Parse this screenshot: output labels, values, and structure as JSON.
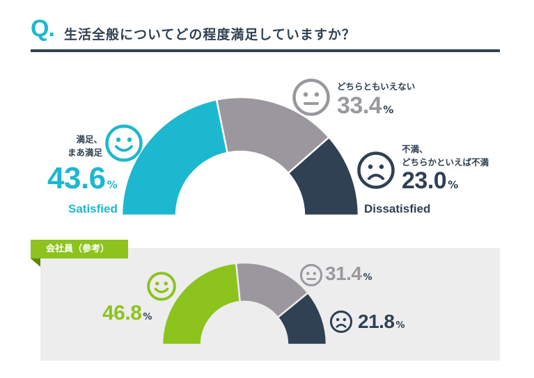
{
  "header": {
    "q_mark": "Q.",
    "question": "生活全般についてどの程度満足していますか？"
  },
  "colors": {
    "satisfied": "#1cb8cf",
    "neutral": "#9b979e",
    "dissatisfied": "#2f4152",
    "sub_satisfied": "#8cc31d"
  },
  "icons": {
    "satisfied": "smiling-face-icon",
    "neutral": "neutral-face-icon",
    "dissatisfied": "frowning-face-icon"
  },
  "main": {
    "satisfied": {
      "label_line1": "満足、",
      "label_line2": "まあ満足",
      "value": "43.6",
      "unit": "%",
      "english": "Satisfied"
    },
    "neutral": {
      "label": "どちらともいえない",
      "value": "33.4",
      "unit": "%"
    },
    "dissatisfied": {
      "label_line1": "不満、",
      "label_line2": "どちらかといえば不満",
      "value": "23.0",
      "unit": "%",
      "english": "Dissatisfied"
    }
  },
  "sub": {
    "tab_label": "会社員（参考）",
    "satisfied": {
      "value": "46.8",
      "unit": "%"
    },
    "neutral": {
      "value": "31.4",
      "unit": "%"
    },
    "dissatisfied": {
      "value": "21.8",
      "unit": "%"
    }
  },
  "chart_data": [
    {
      "type": "pie",
      "shape": "half-donut",
      "categories": [
        "満足、まあ満足",
        "どちらともいえない",
        "不満、どちらかといえば不満"
      ],
      "values": [
        43.6,
        33.4,
        23.0
      ],
      "unit": "%"
    },
    {
      "type": "pie",
      "shape": "half-donut",
      "title": "会社員（参考）",
      "categories": [
        "満足、まあ満足",
        "どちらともいえない",
        "不満、どちらかといえば不満"
      ],
      "values": [
        46.8,
        31.4,
        21.8
      ],
      "unit": "%"
    }
  ]
}
